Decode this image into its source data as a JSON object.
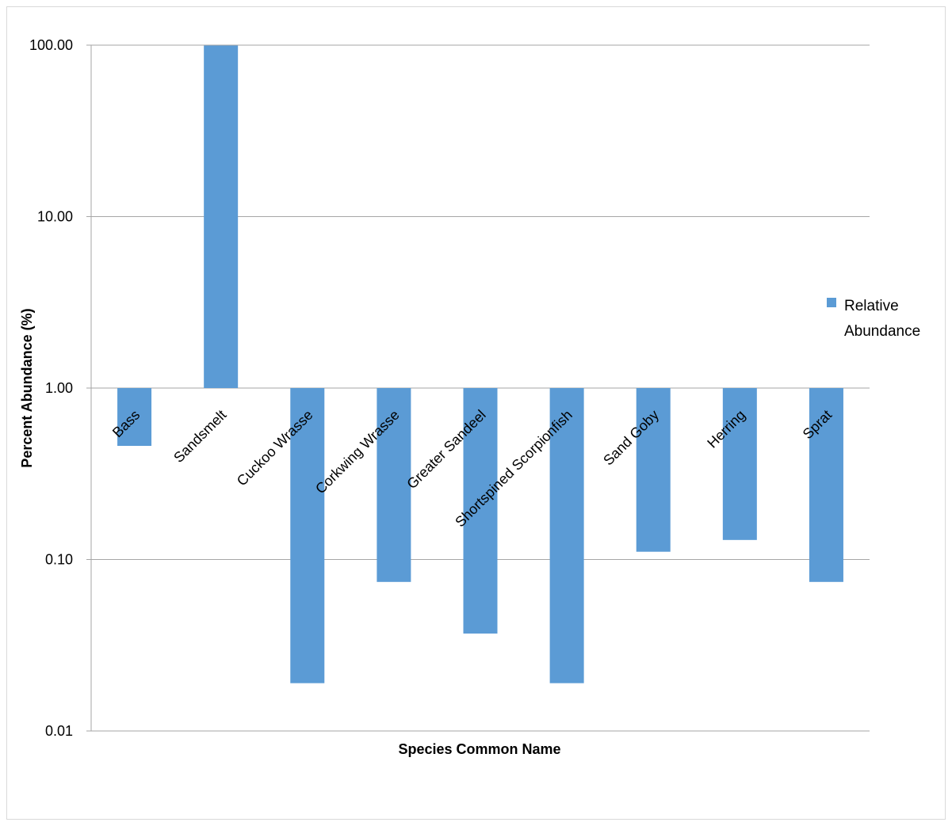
{
  "chart_data": {
    "type": "bar",
    "title": "",
    "xlabel": "Species Common Name",
    "ylabel": "Percent Abundance (%)",
    "y_scale": "log",
    "ylim": [
      0.01,
      100
    ],
    "baseline": 1,
    "y_ticks": [
      "100.00",
      "10.00",
      "1.00",
      "0.10",
      "0.01"
    ],
    "grid": true,
    "legend_position": "right",
    "categories": [
      "Bass",
      "Sandsmelt",
      "Cuckoo Wrasse",
      "Corkwing Wrasse",
      "Greater Sandeel",
      "Shortspined Scorpionfish",
      "Sand Goby",
      "Herring",
      "Sprat"
    ],
    "series": [
      {
        "name": "Relative Abundance",
        "color": "#5B9BD5",
        "values": [
          0.46,
          99.5,
          0.019,
          0.074,
          0.037,
          0.019,
          0.111,
          0.13,
          0.074
        ]
      }
    ]
  }
}
